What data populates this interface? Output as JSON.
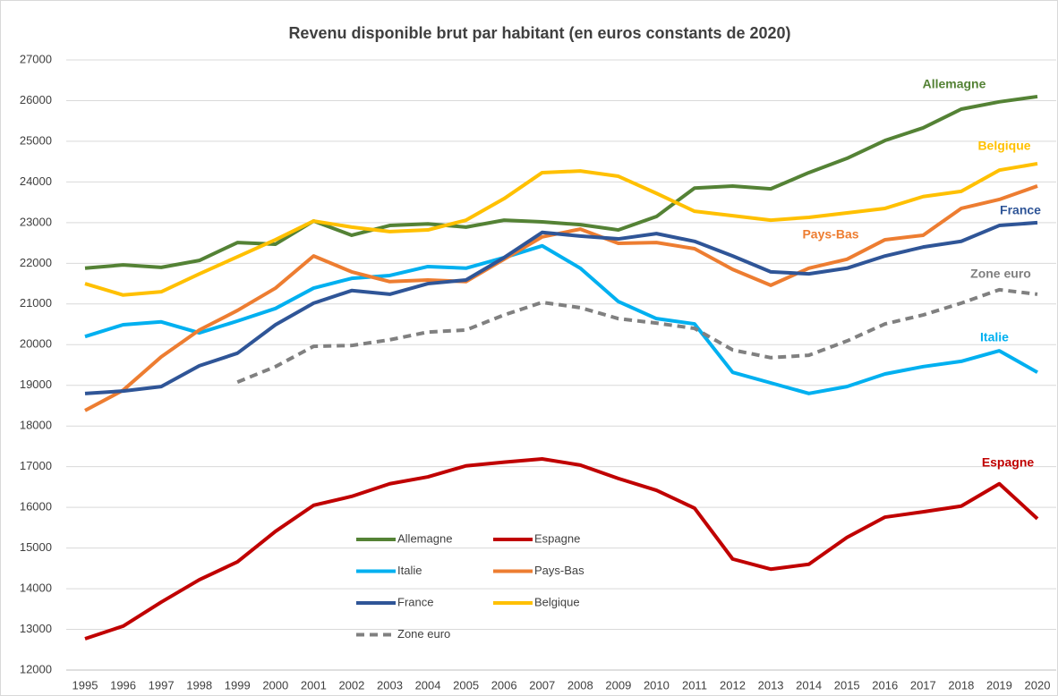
{
  "chart_data": {
    "type": "line",
    "title": "Revenu disponible brut par habitant (en euros constants de 2020)",
    "categories": [
      "1995",
      "1996",
      "1997",
      "1998",
      "1999",
      "2000",
      "2001",
      "2002",
      "2003",
      "2004",
      "2005",
      "2006",
      "2007",
      "2008",
      "2009",
      "2010",
      "2011",
      "2012",
      "2013",
      "2014",
      "2015",
      "2016",
      "2017",
      "2018",
      "2019",
      "2020"
    ],
    "ylim": [
      12000,
      27000
    ],
    "yticks": [
      12000,
      13000,
      14000,
      15000,
      16000,
      17000,
      18000,
      19000,
      20000,
      21000,
      22000,
      23000,
      24000,
      25000,
      26000,
      27000
    ],
    "grid": true,
    "series": [
      {
        "name": "Allemagne",
        "color": "#548235",
        "values": [
          21880,
          21960,
          21900,
          22070,
          22510,
          22470,
          23040,
          22690,
          22930,
          22970,
          22890,
          23060,
          23020,
          22950,
          22820,
          23150,
          23850,
          23900,
          23830,
          24230,
          24580,
          25020,
          25330,
          25790,
          25970,
          26100
        ]
      },
      {
        "name": "Espagne",
        "color": "#c00000",
        "values": [
          12770,
          13080,
          13670,
          14220,
          14660,
          15410,
          16050,
          16270,
          16580,
          16750,
          17020,
          17110,
          17190,
          17040,
          16710,
          16420,
          15980,
          14730,
          14480,
          14600,
          15260,
          15760,
          15890,
          16030,
          16580,
          15720
        ]
      },
      {
        "name": "Italie",
        "color": "#00b0f0",
        "values": [
          20200,
          20490,
          20560,
          20290,
          20580,
          20890,
          21390,
          21630,
          21700,
          21920,
          21880,
          22140,
          22430,
          21880,
          21060,
          20640,
          20510,
          19320,
          19060,
          18800,
          18970,
          19280,
          19460,
          19590,
          19850,
          19320
        ]
      },
      {
        "name": "Pays-Bas",
        "color": "#ed7d31",
        "values": [
          18380,
          18880,
          19700,
          20360,
          20840,
          21390,
          22180,
          21790,
          21550,
          21590,
          21550,
          22100,
          22650,
          22840,
          22490,
          22510,
          22360,
          21850,
          21460,
          21880,
          22100,
          22580,
          22690,
          23350,
          23570,
          23900
        ]
      },
      {
        "name": "France",
        "color": "#2f5597",
        "values": [
          18800,
          18860,
          18970,
          19480,
          19790,
          20490,
          21020,
          21330,
          21240,
          21500,
          21590,
          22140,
          22760,
          22670,
          22600,
          22730,
          22540,
          22180,
          21790,
          21740,
          21880,
          22180,
          22400,
          22540,
          22930,
          23000
        ]
      },
      {
        "name": "Belgique",
        "color": "#ffc000",
        "values": [
          21500,
          21220,
          21300,
          21740,
          22160,
          22580,
          23040,
          22890,
          22780,
          22820,
          23060,
          23590,
          24230,
          24270,
          24140,
          23720,
          23280,
          23170,
          23060,
          23130,
          23240,
          23350,
          23640,
          23770,
          24290,
          24450
        ]
      },
      {
        "name": "Zone euro",
        "color": "#808080",
        "dash": true,
        "values": [
          null,
          null,
          null,
          null,
          19080,
          19460,
          19960,
          19980,
          20120,
          20310,
          20360,
          20730,
          21040,
          20910,
          20640,
          20530,
          20400,
          19870,
          19680,
          19740,
          20090,
          20510,
          20730,
          21020,
          21350,
          21240
        ]
      }
    ]
  }
}
